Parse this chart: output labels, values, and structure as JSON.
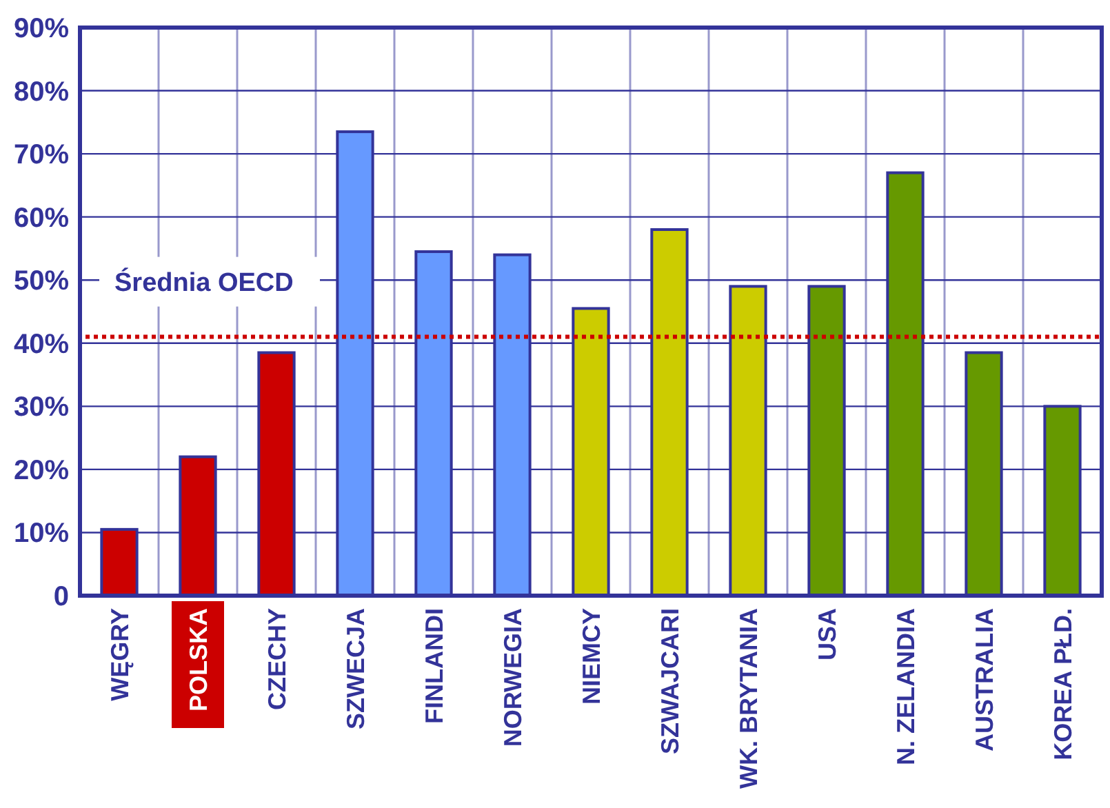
{
  "chart_data": {
    "type": "bar",
    "categories": [
      "WĘGRY",
      "POLSKA",
      "CZECHY",
      "SZWECJA",
      "FINLANDI",
      "NORWEGIA",
      "NIEMCY",
      "SZWAJCARI",
      "WK. BRYTANIA",
      "USA",
      "N. ZELANDIA",
      "AUSTRALIA",
      "KOREA PŁD."
    ],
    "values": [
      10.5,
      22,
      38.5,
      73.5,
      54.5,
      54,
      45.5,
      58,
      49,
      49,
      67,
      38.5,
      30
    ],
    "colors": [
      "#cc0000",
      "#cc0000",
      "#cc0000",
      "#6699ff",
      "#6699ff",
      "#6699ff",
      "#cccc00",
      "#cccc00",
      "#cccc00",
      "#669900",
      "#669900",
      "#669900",
      "#669900"
    ],
    "ylim": [
      0,
      90
    ],
    "yticks": [
      {
        "value": 0,
        "label": "0"
      },
      {
        "value": 10,
        "label": "10%"
      },
      {
        "value": 20,
        "label": "20%"
      },
      {
        "value": 30,
        "label": "30%"
      },
      {
        "value": 40,
        "label": "40%"
      },
      {
        "value": 50,
        "label": "50%"
      },
      {
        "value": 60,
        "label": "60%"
      },
      {
        "value": 70,
        "label": "70%"
      },
      {
        "value": 80,
        "label": "80%"
      },
      {
        "value": 90,
        "label": "90%"
      }
    ],
    "grid": true,
    "ref_lines": [
      {
        "axis": "y",
        "value": 41,
        "label": "Średnia OECD",
        "color": "#cc0000",
        "line_style": "dotted"
      }
    ]
  }
}
